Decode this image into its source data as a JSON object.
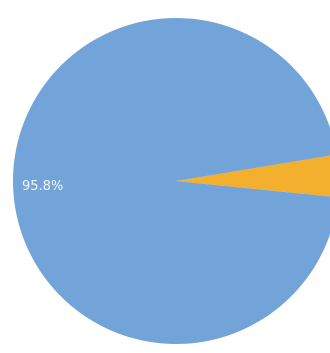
{
  "chart_data": {
    "type": "pie",
    "title": "",
    "slices": [
      {
        "label": "95.8%",
        "value": 95.8,
        "color": "#72a4d9"
      },
      {
        "label": "",
        "value": 4.2,
        "color": "#f3b02e"
      }
    ]
  }
}
